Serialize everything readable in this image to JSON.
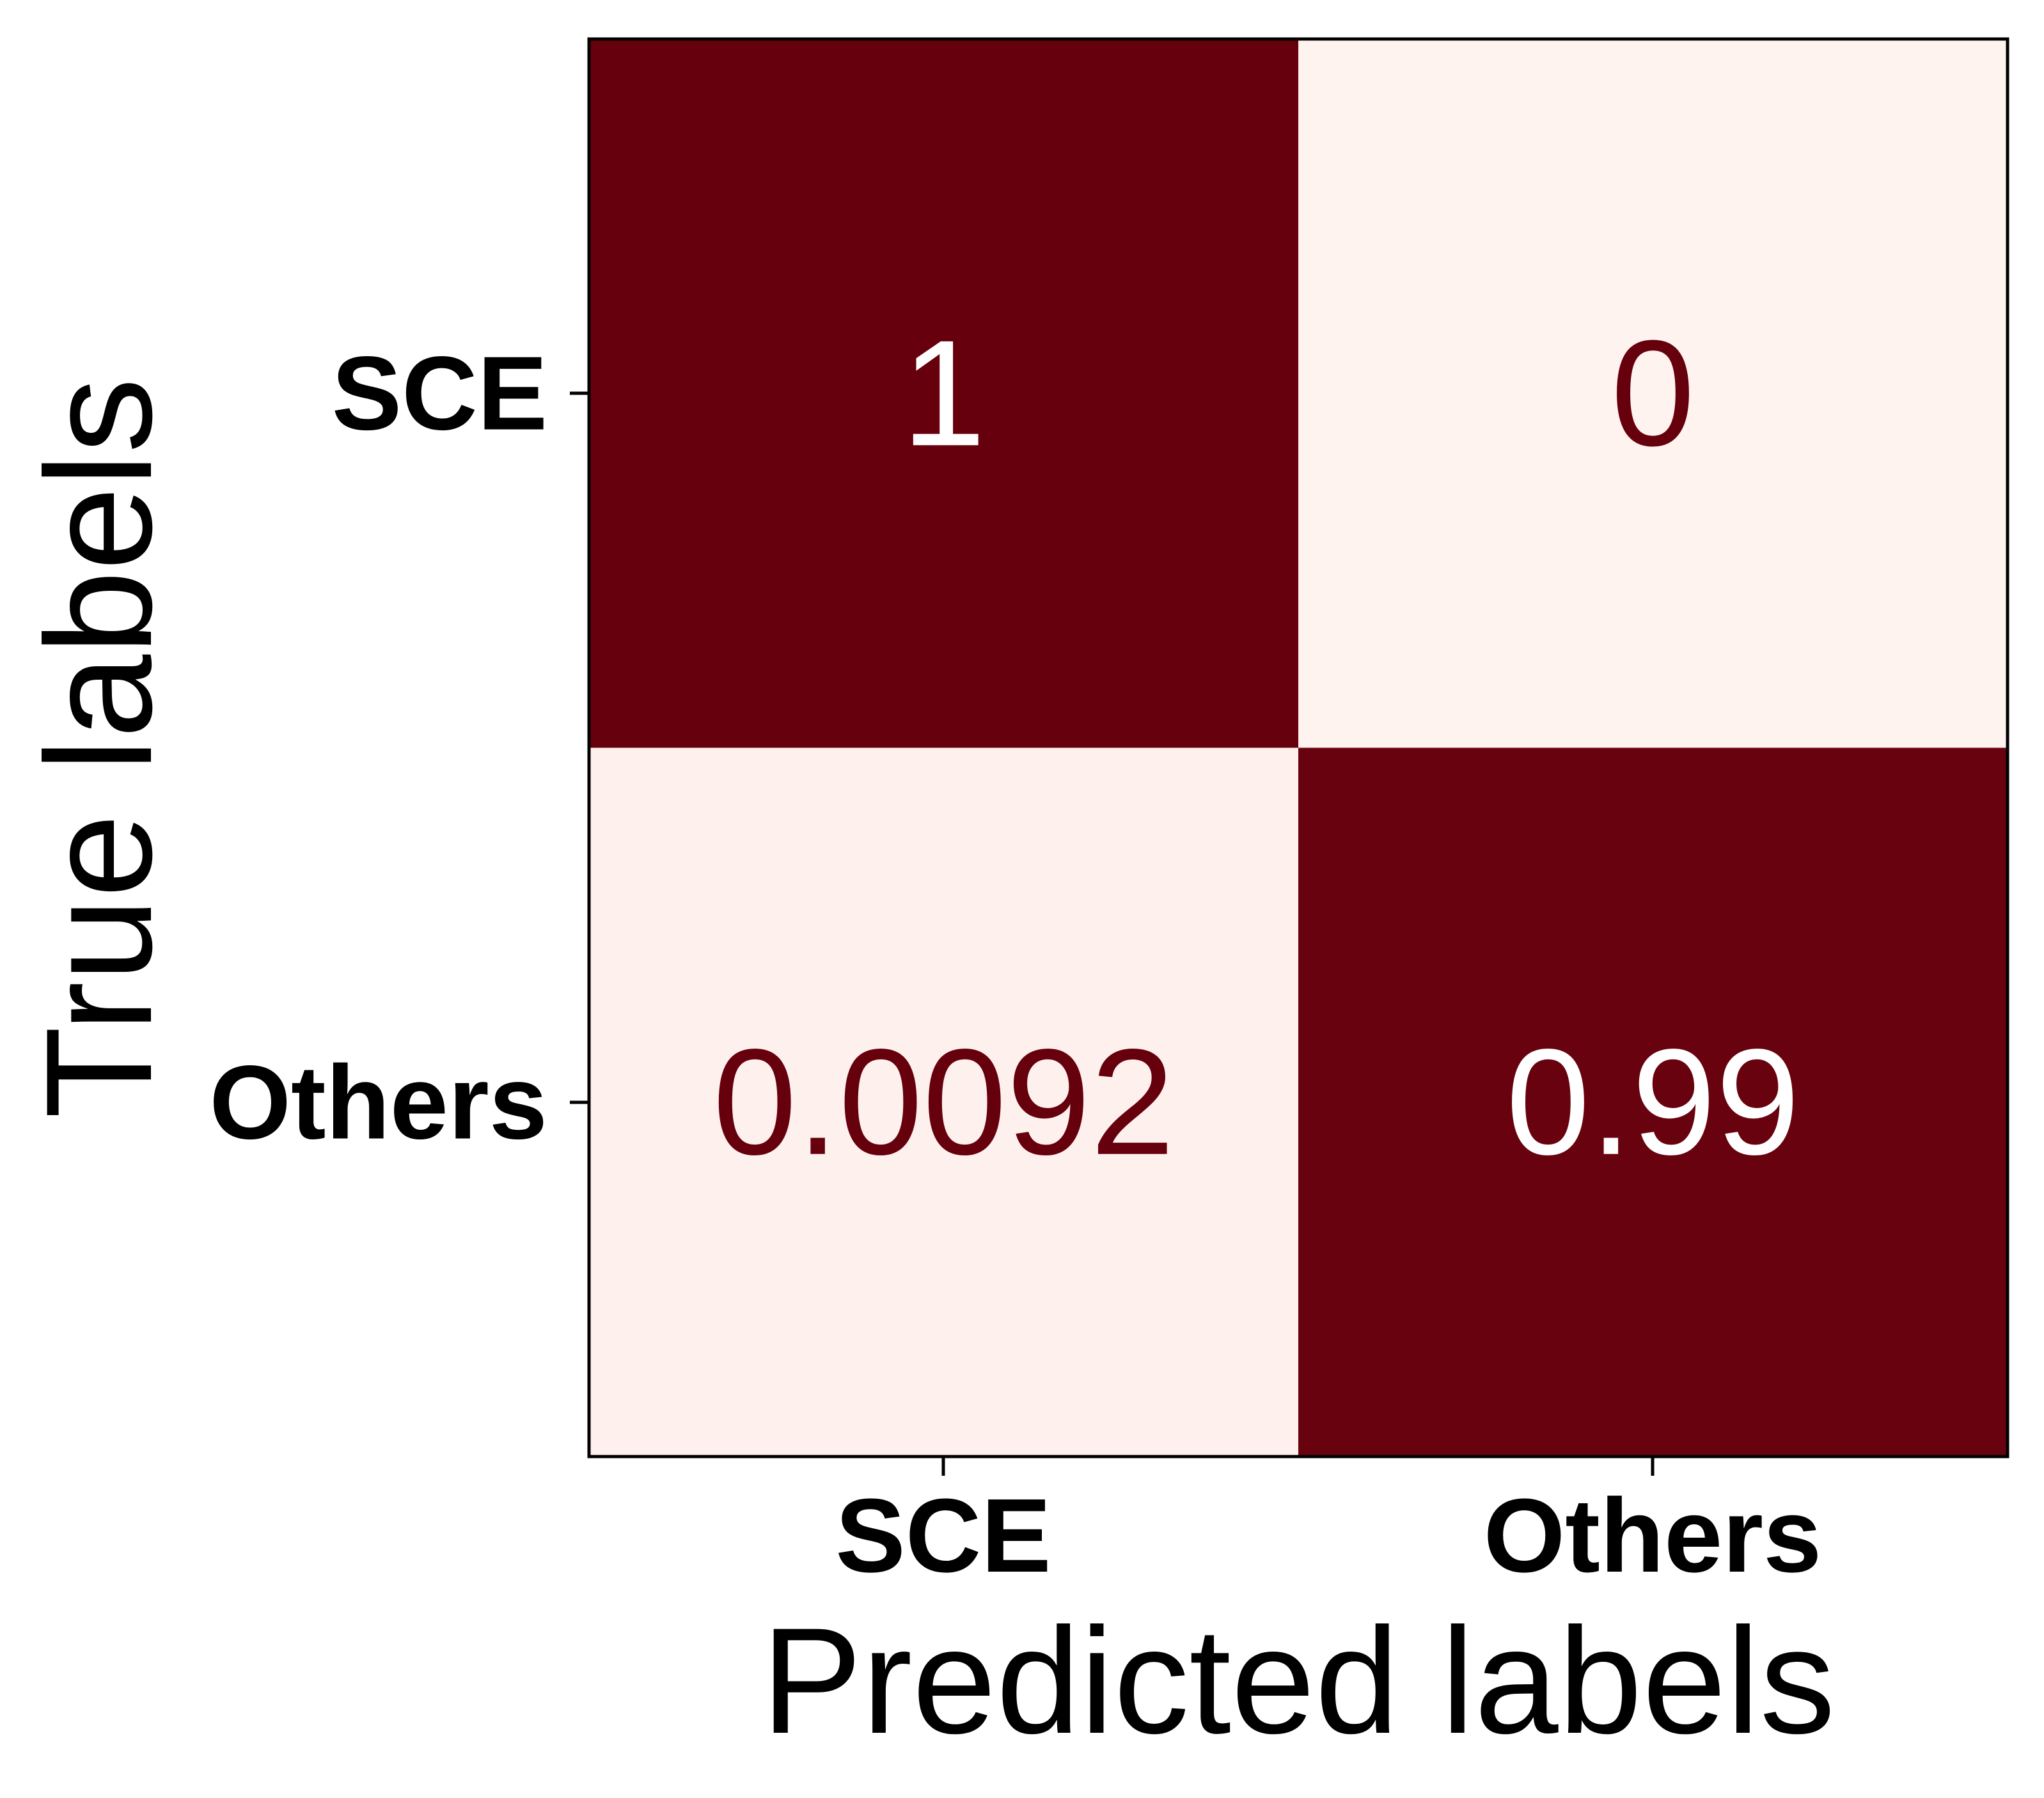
{
  "chart_data": {
    "type": "heatmap",
    "title": "",
    "xlabel": "Predicted labels",
    "ylabel": "True labels",
    "x_categories": [
      "SCE",
      "Others"
    ],
    "y_categories": [
      "SCE",
      "Others"
    ],
    "values": [
      [
        1,
        0
      ],
      [
        0.0092,
        0.99
      ]
    ],
    "cell_labels": [
      [
        "1",
        "0"
      ],
      [
        "0.0092",
        "0.99"
      ]
    ],
    "value_range": [
      0,
      1
    ],
    "colormap": "Reds",
    "colors": {
      "low": "#fff3ef",
      "high": "#67000d"
    },
    "grid": false,
    "legend": "none"
  }
}
